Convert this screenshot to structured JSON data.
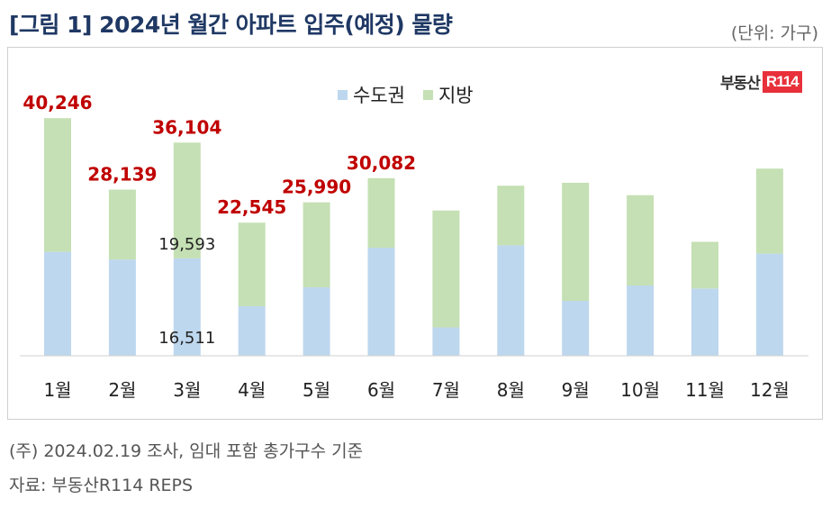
{
  "title": "[그림 1] 2024년 월간 아파트 입주(예정) 물량",
  "unit_label": "(단위: 가구)",
  "logo": {
    "text": "부동산",
    "mark": "R114"
  },
  "legend": [
    "수도권",
    "지방"
  ],
  "colors": {
    "capital": "#bdd7ee",
    "local": "#c5e0b4",
    "total_label": "#c00000",
    "title": "#1f3864"
  },
  "chart_data": {
    "type": "bar",
    "stacked": true,
    "categories": [
      "1월",
      "2월",
      "3월",
      "4월",
      "5월",
      "6월",
      "7월",
      "8월",
      "9월",
      "10월",
      "11월",
      "12월"
    ],
    "series": [
      {
        "name": "수도권",
        "values": [
          17600,
          16300,
          16511,
          8400,
          11600,
          18300,
          4800,
          18700,
          9300,
          11900,
          11400,
          17300
        ]
      },
      {
        "name": "지방",
        "values": [
          22646,
          11839,
          19593,
          14145,
          14390,
          11782,
          19800,
          10100,
          20000,
          15300,
          7900,
          14400
        ]
      }
    ],
    "totals": [
      40246,
      28139,
      36104,
      22545,
      25990,
      30082,
      null,
      null,
      null,
      null,
      null,
      null
    ],
    "total_labels": [
      "40,246",
      "28,139",
      "36,104",
      "22,545",
      "25,990",
      "30,082",
      "",
      "",
      "",
      "",
      "",
      ""
    ],
    "segment_labels": [
      {
        "category": "3월",
        "series": "지방",
        "text": "19,593"
      },
      {
        "category": "3월",
        "series": "수도권",
        "text": "16,511"
      }
    ],
    "ylim": [
      0,
      45000
    ],
    "grid": false,
    "legend_position": "top-center"
  },
  "footnotes": [
    "(주) 2024.02.19 조사, 임대 포함 총가구수 기준",
    "자료: 부동산R114 REPS"
  ]
}
